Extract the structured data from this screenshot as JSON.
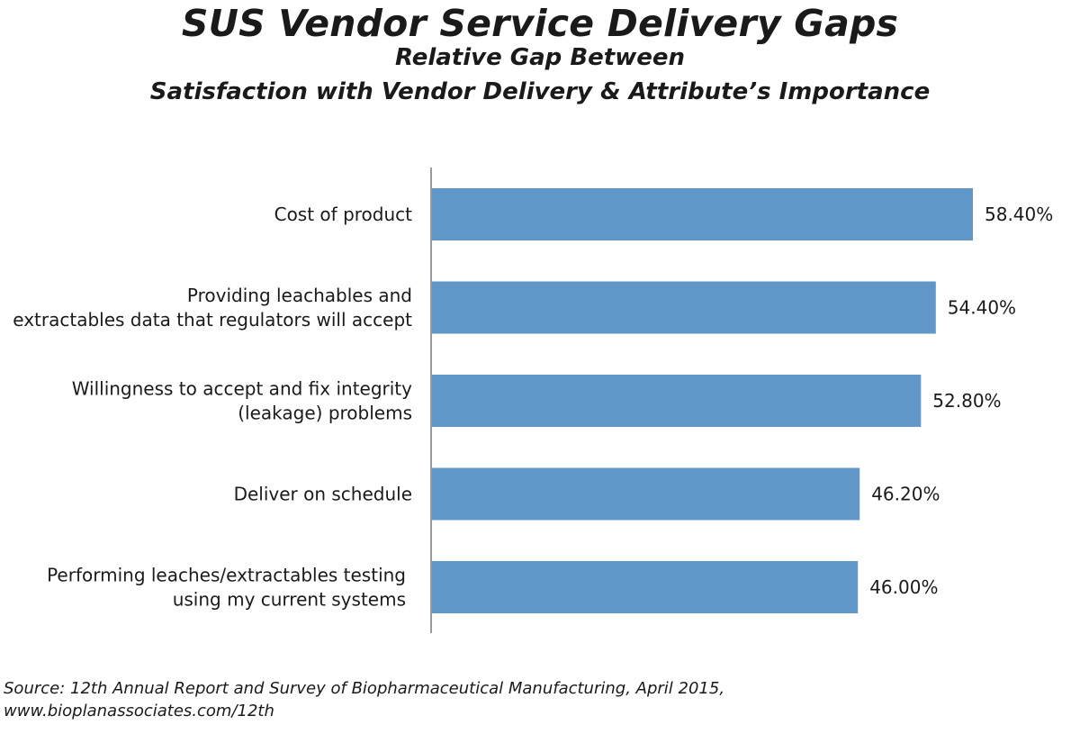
{
  "chart_data": {
    "type": "bar",
    "orientation": "horizontal",
    "title": "SUS Vendor Service Delivery Gaps",
    "subtitle_lines": [
      "Relative Gap Between",
      "Satisfaction with Vendor Delivery & Attribute’s Importance"
    ],
    "categories": [
      [
        "Cost of product"
      ],
      [
        "Providing leachables and",
        "extractables data that regulators will accept"
      ],
      [
        "Willingness to accept and fix integrity",
        "(leakage) problems"
      ],
      [
        "Deliver on schedule"
      ],
      [
        "Performing leaches/extractables testing",
        "using my current systems"
      ]
    ],
    "values": [
      58.4,
      54.4,
      52.8,
      46.2,
      46.0
    ],
    "value_labels": [
      "58.40%",
      "54.40%",
      "52.80%",
      "46.20%",
      "46.00%"
    ],
    "unit": "%",
    "xlim": [
      0,
      60
    ],
    "bar_color": "#6096c8",
    "axis_color": "#9a9a9a",
    "grid": false,
    "legend": "none"
  },
  "source": {
    "line1": "Source: 12th Annual Report and Survey of Biopharmaceutical Manufacturing, April 2015,",
    "line2": "www.bioplanassociates.com/12th"
  }
}
